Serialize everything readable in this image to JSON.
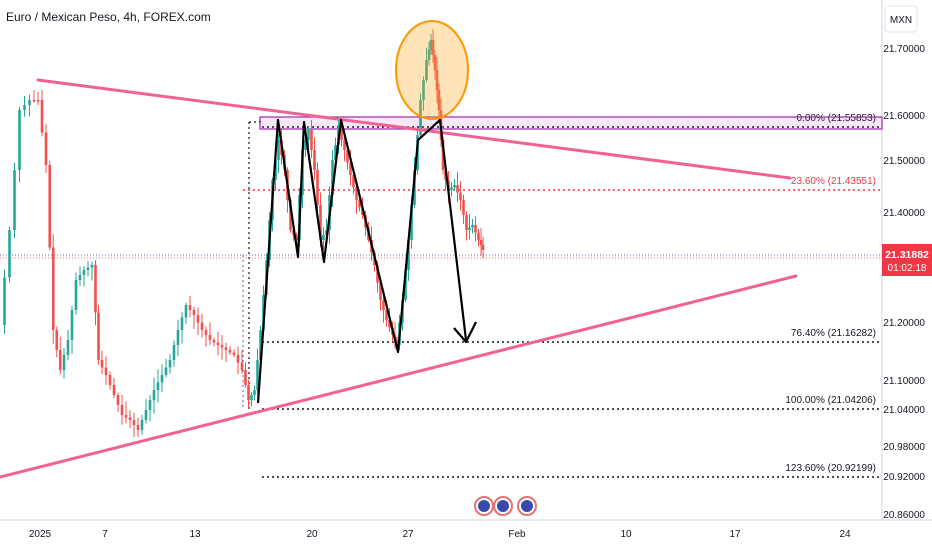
{
  "header": {
    "title": "Euro / Mexican Peso, 4h, FOREX.com",
    "currency": "MXN"
  },
  "chart_data": {
    "type": "candlestick",
    "symbol": "EURMXN",
    "y_ticks": [
      "21.70000",
      "21.60000",
      "21.50000",
      "21.40000",
      "21.30000",
      "21.20000",
      "21.10000",
      "21.04000",
      "20.98000",
      "20.92000",
      "20.86000"
    ],
    "x_ticks": [
      "2025",
      "7",
      "13",
      "20",
      "27",
      "Feb",
      "10",
      "17",
      "24"
    ],
    "last_price": "21.31882",
    "countdown": "01:02:18",
    "fib_levels": [
      {
        "label": "0.00% (21.55853)",
        "value": 21.55853,
        "color": "#131722"
      },
      {
        "label": "23.60% (21.43551)",
        "value": 21.43551,
        "color": "#f23645"
      },
      {
        "label": "76.40% (21.16282)",
        "value": 21.16282,
        "color": "#131722"
      },
      {
        "label": "100.00% (21.04206)",
        "value": 21.04206,
        "color": "#131722"
      },
      {
        "label": "123.60% (20.92199)",
        "value": 20.92199,
        "color": "#131722"
      }
    ],
    "colors": {
      "up": "#26a69a",
      "down": "#ef5350",
      "trend": "#f06292",
      "zone": "#9c27b0",
      "highlight": "#ff9800",
      "price_tag": "#f23645",
      "pattern": "#000000"
    }
  }
}
